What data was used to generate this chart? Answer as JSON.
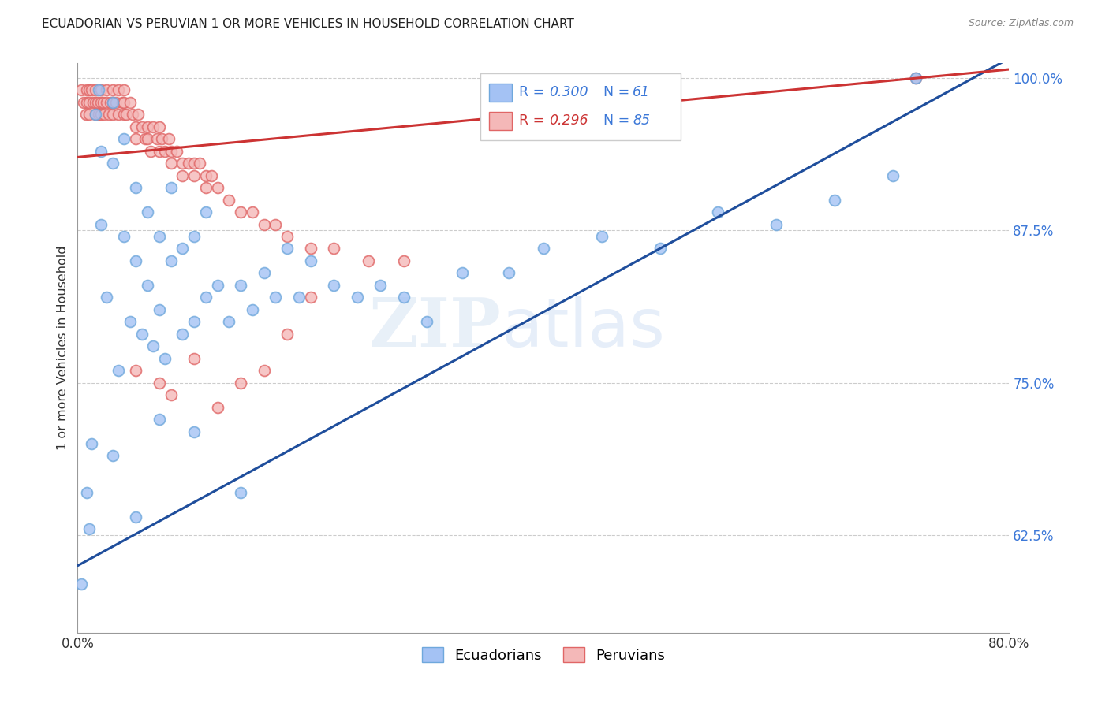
{
  "title": "ECUADORIAN VS PERUVIAN 1 OR MORE VEHICLES IN HOUSEHOLD CORRELATION CHART",
  "source": "Source: ZipAtlas.com",
  "ylabel": "1 or more Vehicles in Household",
  "blue_r": "0.300",
  "blue_n": "61",
  "pink_r": "0.296",
  "pink_n": "85",
  "xmin": 0.0,
  "xmax": 0.8,
  "ymin": 0.545,
  "ymax": 1.012,
  "yticks": [
    0.625,
    0.75,
    0.875,
    1.0
  ],
  "ytick_labels": [
    "62.5%",
    "75.0%",
    "87.5%",
    "100.0%"
  ],
  "xtick_positions": [
    0.0,
    0.1,
    0.2,
    0.3,
    0.4,
    0.5,
    0.6,
    0.7,
    0.8
  ],
  "xtick_labels": [
    "0.0%",
    "",
    "",
    "",
    "",
    "",
    "",
    "",
    "80.0%"
  ],
  "blue_face": "#a4c2f4",
  "blue_edge": "#6fa8dc",
  "blue_line": "#1f4e9c",
  "pink_face": "#f4b8b8",
  "pink_edge": "#e06666",
  "pink_line": "#cc3333",
  "marker_size": 100,
  "blue_intercept": 0.6,
  "blue_slope": 0.52,
  "pink_intercept": 0.935,
  "pink_slope": 0.09,
  "blue_x": [
    0.003,
    0.008,
    0.012,
    0.015,
    0.018,
    0.02,
    0.02,
    0.025,
    0.03,
    0.03,
    0.035,
    0.04,
    0.04,
    0.045,
    0.05,
    0.05,
    0.055,
    0.06,
    0.06,
    0.065,
    0.07,
    0.07,
    0.075,
    0.08,
    0.08,
    0.09,
    0.09,
    0.1,
    0.1,
    0.11,
    0.11,
    0.12,
    0.13,
    0.14,
    0.15,
    0.16,
    0.17,
    0.18,
    0.19,
    0.2,
    0.22,
    0.24,
    0.26,
    0.28,
    0.3,
    0.33,
    0.37,
    0.4,
    0.45,
    0.5,
    0.55,
    0.6,
    0.65,
    0.7,
    0.72,
    0.01,
    0.03,
    0.05,
    0.07,
    0.1,
    0.14
  ],
  "blue_y": [
    0.585,
    0.66,
    0.7,
    0.97,
    0.99,
    0.88,
    0.94,
    0.82,
    0.93,
    0.98,
    0.76,
    0.87,
    0.95,
    0.8,
    0.85,
    0.91,
    0.79,
    0.83,
    0.89,
    0.78,
    0.81,
    0.87,
    0.77,
    0.85,
    0.91,
    0.79,
    0.86,
    0.8,
    0.87,
    0.82,
    0.89,
    0.83,
    0.8,
    0.83,
    0.81,
    0.84,
    0.82,
    0.86,
    0.82,
    0.85,
    0.83,
    0.82,
    0.83,
    0.82,
    0.8,
    0.84,
    0.84,
    0.86,
    0.87,
    0.86,
    0.89,
    0.88,
    0.9,
    0.92,
    1.0,
    0.63,
    0.69,
    0.64,
    0.72,
    0.71,
    0.66
  ],
  "pink_x": [
    0.003,
    0.005,
    0.007,
    0.008,
    0.008,
    0.01,
    0.01,
    0.01,
    0.012,
    0.013,
    0.015,
    0.015,
    0.015,
    0.017,
    0.018,
    0.02,
    0.02,
    0.02,
    0.022,
    0.023,
    0.025,
    0.025,
    0.027,
    0.028,
    0.03,
    0.03,
    0.03,
    0.033,
    0.035,
    0.035,
    0.038,
    0.04,
    0.04,
    0.04,
    0.042,
    0.045,
    0.047,
    0.05,
    0.05,
    0.052,
    0.055,
    0.058,
    0.06,
    0.06,
    0.063,
    0.065,
    0.068,
    0.07,
    0.07,
    0.072,
    0.075,
    0.078,
    0.08,
    0.08,
    0.085,
    0.09,
    0.09,
    0.095,
    0.1,
    0.1,
    0.105,
    0.11,
    0.11,
    0.115,
    0.12,
    0.13,
    0.14,
    0.15,
    0.16,
    0.17,
    0.18,
    0.2,
    0.22,
    0.25,
    0.28,
    0.05,
    0.07,
    0.08,
    0.1,
    0.12,
    0.14,
    0.16,
    0.18,
    0.2,
    0.72
  ],
  "pink_y": [
    0.99,
    0.98,
    0.97,
    0.99,
    0.98,
    0.99,
    0.98,
    0.97,
    0.99,
    0.98,
    0.99,
    0.98,
    0.97,
    0.98,
    0.97,
    0.99,
    0.98,
    0.97,
    0.98,
    0.97,
    0.99,
    0.98,
    0.97,
    0.98,
    0.99,
    0.98,
    0.97,
    0.98,
    0.97,
    0.99,
    0.98,
    0.97,
    0.99,
    0.98,
    0.97,
    0.98,
    0.97,
    0.96,
    0.95,
    0.97,
    0.96,
    0.95,
    0.96,
    0.95,
    0.94,
    0.96,
    0.95,
    0.94,
    0.96,
    0.95,
    0.94,
    0.95,
    0.94,
    0.93,
    0.94,
    0.93,
    0.92,
    0.93,
    0.93,
    0.92,
    0.93,
    0.92,
    0.91,
    0.92,
    0.91,
    0.9,
    0.89,
    0.89,
    0.88,
    0.88,
    0.87,
    0.86,
    0.86,
    0.85,
    0.85,
    0.76,
    0.75,
    0.74,
    0.77,
    0.73,
    0.75,
    0.76,
    0.79,
    0.82,
    1.0
  ]
}
